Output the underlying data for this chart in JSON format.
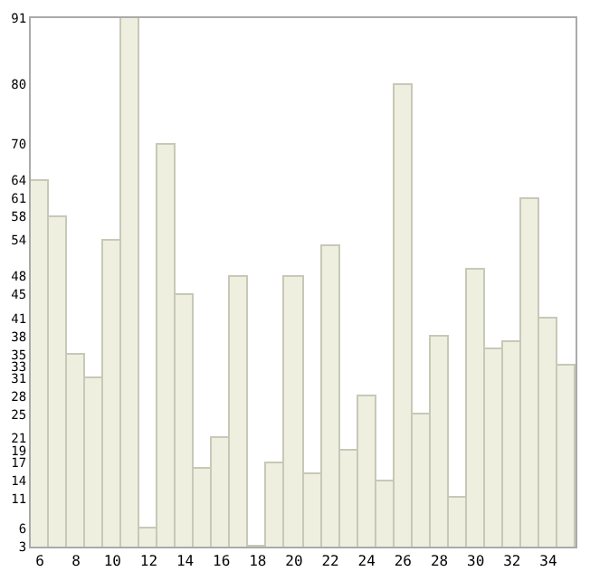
{
  "chart_data": {
    "type": "bar",
    "x": [
      6,
      7,
      8,
      9,
      10,
      11,
      12,
      13,
      14,
      15,
      16,
      17,
      18,
      19,
      20,
      21,
      22,
      23,
      24,
      25,
      26,
      27,
      28,
      29,
      30,
      31,
      32,
      33,
      34,
      35
    ],
    "values": [
      64,
      58,
      35,
      31,
      54,
      91,
      6,
      70,
      45,
      16,
      21,
      48,
      3,
      17,
      48,
      15,
      53,
      19,
      28,
      14,
      80,
      25,
      38,
      11,
      49,
      36,
      37,
      61,
      41,
      33
    ],
    "color": "#efefe0",
    "xlim": [
      5.5,
      35.5
    ],
    "xticks": [
      6,
      8,
      10,
      12,
      14,
      16,
      18,
      20,
      22,
      24,
      26,
      28,
      30,
      32,
      34
    ],
    "ylim": [
      3,
      91
    ],
    "yticks": [
      3,
      6,
      11,
      14,
      17,
      19,
      21,
      25,
      28,
      31,
      33,
      35,
      38,
      41,
      45,
      48,
      54,
      58,
      61,
      64,
      70,
      80,
      91
    ],
    "grid": false
  }
}
